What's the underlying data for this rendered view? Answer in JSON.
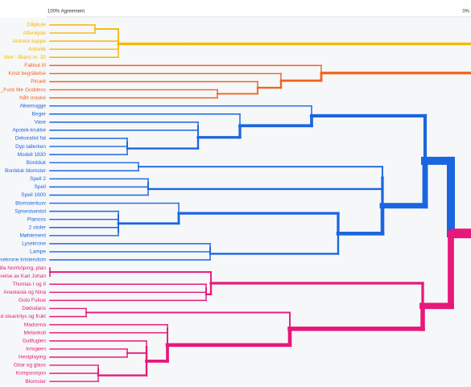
{
  "axis": {
    "start_label": "100% Agreement",
    "end_label": "0%"
  },
  "groups": [
    {
      "color": "#f5b800",
      "leaves": [
        "Dåpkule",
        "Aftenkjole",
        "Antrekk kappe",
        "Antrekk",
        "Noir - Blanc nr. 20"
      ]
    },
    {
      "color": "#f0641e",
      "leaves": [
        "Fallout III",
        "Kristi begrätelse",
        "Piruett",
        "_Fuck Me Goddess",
        "Nåh maske"
      ]
    },
    {
      "color": "#1a66e0",
      "leaves": [
        "Alkemugge",
        "Beger",
        "Vase",
        "Apotek-krukke",
        "Dekorativt fat",
        "Dyp tallerken",
        "Modell 1830",
        "Bordduk",
        "Bordduk blomster",
        "Speil 2",
        "Speil",
        "Speil 1600",
        "Blomsterkurv",
        "Spisestuestol",
        "Pianoss",
        "2 stoler",
        "Møblement",
        "Lysekrone",
        "Lampe",
        "Lysekrone kristendom"
      ]
    },
    {
      "color": "#e6197a",
      "leaves": [
        "Villa Norrköping, plan",
        "Begravelse av Kari Johan",
        "Thomas I og II",
        "Anastasia og Nina",
        "Goto Fukue",
        "Dødsdans",
        "Stilleben med stearinlys og frukt",
        "Madonna",
        "Melankoli",
        "Gullfuglen",
        "Innsjøen",
        "Hestplaying",
        "Gitar og glass",
        "Komposisjon",
        "Blomster"
      ]
    }
  ]
}
